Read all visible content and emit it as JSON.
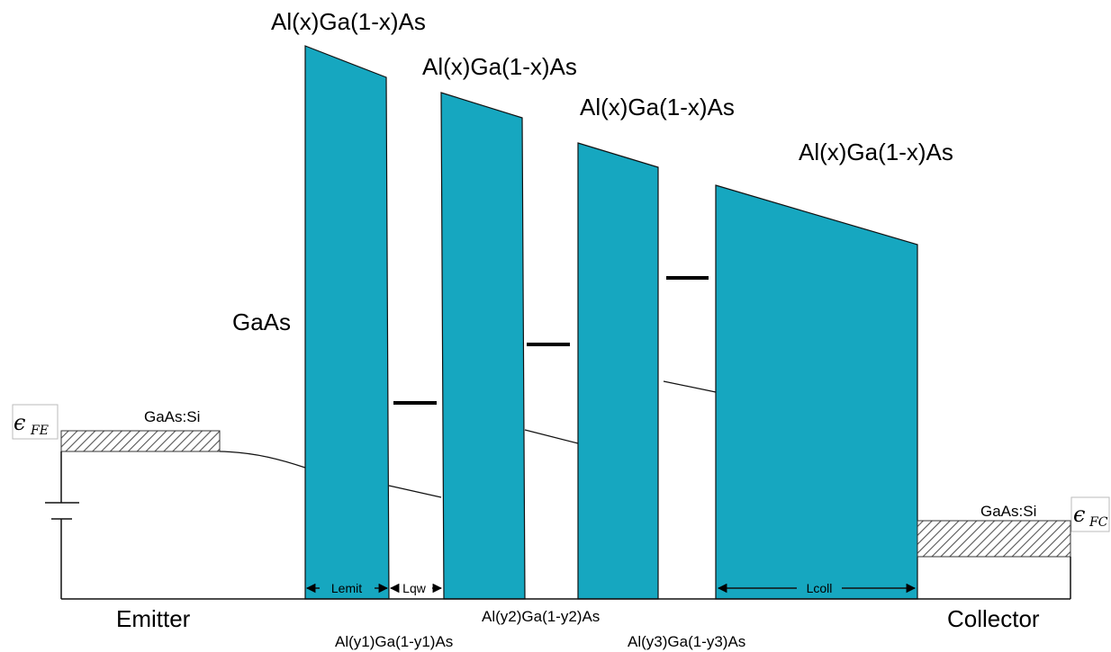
{
  "barrier_labels": [
    "Al(x)Ga(1-x)As",
    "Al(x)Ga(1-x)As",
    "Al(x)Ga(1-x)As",
    "Al(x)Ga(1-x)As"
  ],
  "well_labels": {
    "left": "GaAs",
    "w1": "Al(y1)Ga(1-y1)As",
    "w2": "Al(y2)Ga(1-y2)As",
    "w3": "Al(y3)Ga(1-y3)As"
  },
  "contacts": {
    "emitter_doping": "GaAs:Si",
    "collector_doping": "GaAs:Si",
    "emitter": "Emitter",
    "collector": "Collector"
  },
  "fermi": {
    "symbol": "ϵ",
    "emitter_sub": "FE",
    "collector_sub": "FC"
  },
  "dimensions": {
    "lemit": "Lemit",
    "lqw": "Lqw",
    "lcoll": "Lcoll"
  },
  "colors": {
    "barrier": "#16a7c0"
  }
}
